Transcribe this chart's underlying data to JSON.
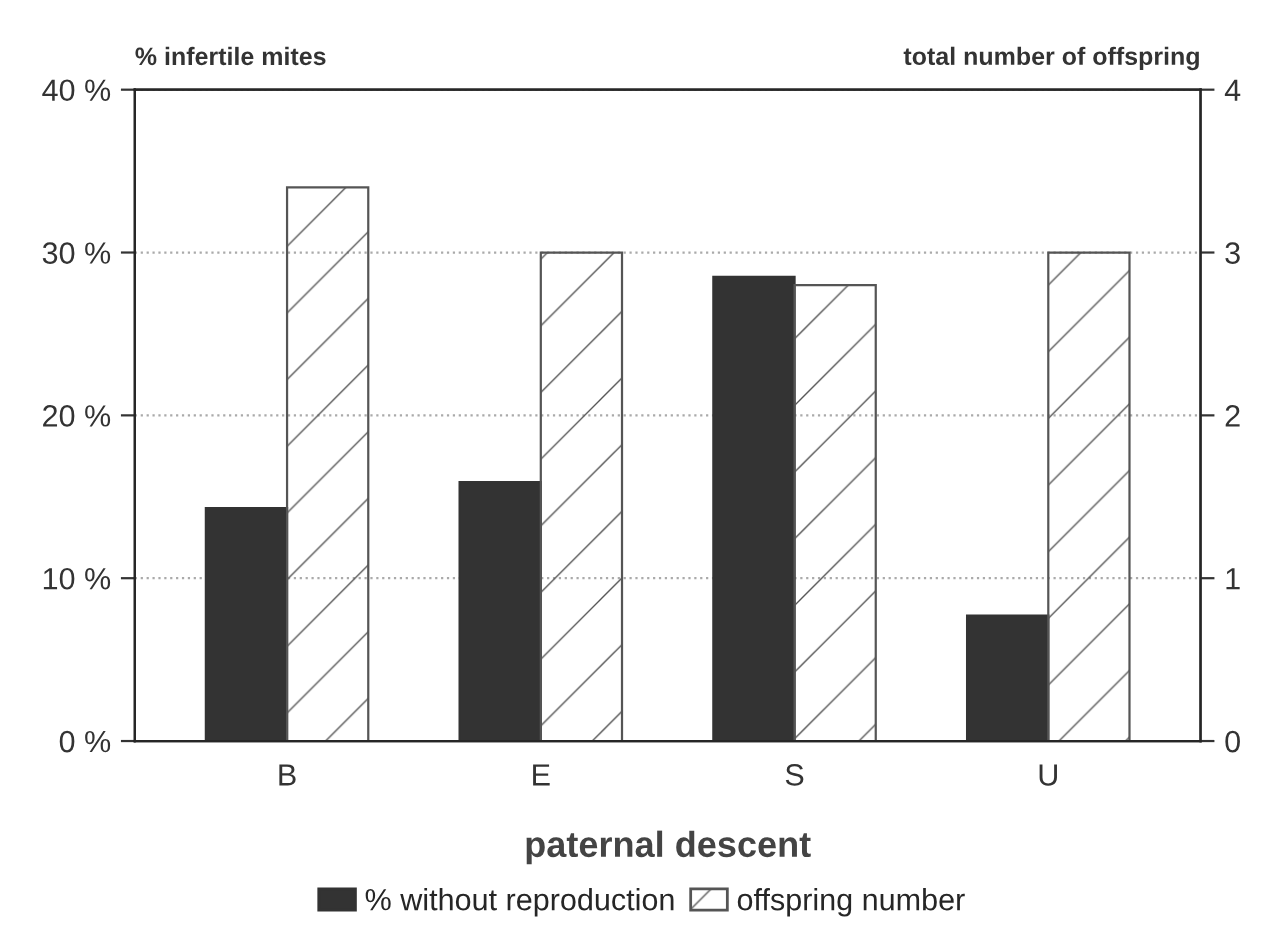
{
  "chart_data": {
    "type": "bar",
    "xlabel": "paternal descent",
    "ylabel": "% infertile mites",
    "y2label": "total number of offspring",
    "categories": [
      "B",
      "E",
      "S",
      "U"
    ],
    "series": [
      {
        "name": "% without reproduction",
        "color": "#333333",
        "values": [
          14.3,
          15.9,
          28.5,
          7.7
        ]
      },
      {
        "name": "offspring number",
        "color": "#555555",
        "axis": "y2",
        "values": [
          3.4,
          3.0,
          2.8,
          3.0
        ]
      }
    ],
    "ylim": [
      0,
      40
    ],
    "yticks": [
      {
        "value": 0,
        "label": "0 %"
      },
      {
        "value": 10,
        "label": "10 %"
      },
      {
        "value": 20,
        "label": "20 %"
      },
      {
        "value": 30,
        "label": "30 %"
      },
      {
        "value": 40,
        "label": "40 %"
      }
    ],
    "y2lim": [
      0,
      4
    ],
    "y2ticks": [
      0,
      1,
      2,
      3,
      4
    ],
    "grid": "y",
    "legend": "bottom"
  }
}
